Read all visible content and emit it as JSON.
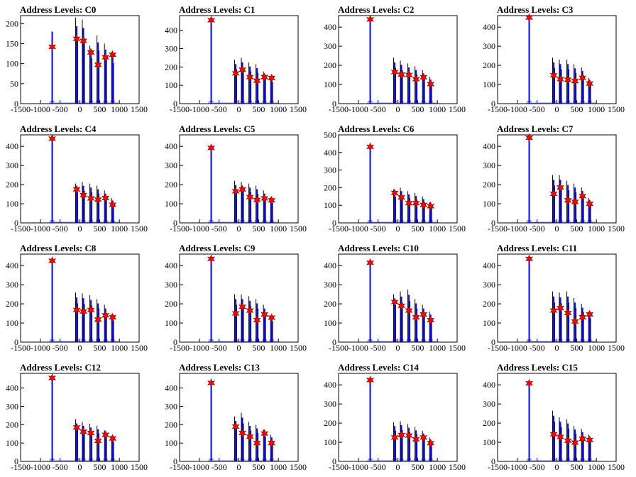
{
  "chart_data": {
    "type": "histogram",
    "x_tick_labels": [
      "-1500",
      "-1000",
      "-500",
      "0",
      "500",
      "1000",
      "1500"
    ],
    "xlim": [
      -1500,
      1500
    ],
    "marker": {
      "symbol": "star",
      "color": "#ff0000"
    },
    "line_color": "#0000ff",
    "charts": [
      {
        "title": "Address Levels: C0",
        "ylim": [
          0,
          220
        ],
        "y_ticks": [
          0,
          50,
          100,
          150,
          200
        ],
        "peaks": [
          {
            "x": -700,
            "y": 180
          },
          {
            "x": -80,
            "y": 215
          },
          {
            "x": 90,
            "y": 210
          },
          {
            "x": 280,
            "y": 145
          },
          {
            "x": 460,
            "y": 170
          },
          {
            "x": 650,
            "y": 150
          },
          {
            "x": 830,
            "y": 130
          }
        ],
        "markers": [
          {
            "x": -700,
            "y": 142
          },
          {
            "x": -80,
            "y": 162
          },
          {
            "x": 90,
            "y": 157
          },
          {
            "x": 280,
            "y": 128
          },
          {
            "x": 460,
            "y": 97
          },
          {
            "x": 650,
            "y": 116
          },
          {
            "x": 830,
            "y": 122
          }
        ]
      },
      {
        "title": "Address Levels: C1",
        "ylim": [
          0,
          480
        ],
        "y_ticks": [
          0,
          100,
          200,
          300,
          400
        ],
        "peaks": [
          {
            "x": -700,
            "y": 450
          },
          {
            "x": -80,
            "y": 240
          },
          {
            "x": 90,
            "y": 250
          },
          {
            "x": 280,
            "y": 225
          },
          {
            "x": 460,
            "y": 215
          },
          {
            "x": 650,
            "y": 175
          },
          {
            "x": 830,
            "y": 150
          }
        ],
        "markers": [
          {
            "x": -700,
            "y": 455
          },
          {
            "x": -80,
            "y": 165
          },
          {
            "x": 90,
            "y": 185
          },
          {
            "x": 280,
            "y": 145
          },
          {
            "x": 460,
            "y": 125
          },
          {
            "x": 650,
            "y": 145
          },
          {
            "x": 830,
            "y": 140
          }
        ]
      },
      {
        "title": "Address Levels: C2",
        "ylim": [
          0,
          460
        ],
        "y_ticks": [
          0,
          100,
          200,
          300,
          400
        ],
        "peaks": [
          {
            "x": -700,
            "y": 440
          },
          {
            "x": -80,
            "y": 240
          },
          {
            "x": 90,
            "y": 225
          },
          {
            "x": 280,
            "y": 210
          },
          {
            "x": 460,
            "y": 195
          },
          {
            "x": 650,
            "y": 175
          },
          {
            "x": 830,
            "y": 140
          }
        ],
        "markers": [
          {
            "x": -700,
            "y": 440
          },
          {
            "x": -80,
            "y": 165
          },
          {
            "x": 90,
            "y": 152
          },
          {
            "x": 280,
            "y": 150
          },
          {
            "x": 460,
            "y": 128
          },
          {
            "x": 650,
            "y": 138
          },
          {
            "x": 830,
            "y": 102
          }
        ]
      },
      {
        "title": "Address Levels: C3",
        "ylim": [
          0,
          460
        ],
        "y_ticks": [
          0,
          100,
          200,
          300,
          400
        ],
        "peaks": [
          {
            "x": -700,
            "y": 445
          },
          {
            "x": -80,
            "y": 240
          },
          {
            "x": 90,
            "y": 230
          },
          {
            "x": 280,
            "y": 230
          },
          {
            "x": 460,
            "y": 205
          },
          {
            "x": 650,
            "y": 190
          },
          {
            "x": 830,
            "y": 135
          }
        ],
        "markers": [
          {
            "x": -700,
            "y": 450
          },
          {
            "x": -80,
            "y": 148
          },
          {
            "x": 90,
            "y": 128
          },
          {
            "x": 280,
            "y": 125
          },
          {
            "x": 460,
            "y": 118
          },
          {
            "x": 650,
            "y": 135
          },
          {
            "x": 830,
            "y": 105
          }
        ]
      },
      {
        "title": "Address Levels: C4",
        "ylim": [
          0,
          460
        ],
        "y_ticks": [
          0,
          100,
          200,
          300,
          400
        ],
        "peaks": [
          {
            "x": -700,
            "y": 440
          },
          {
            "x": -80,
            "y": 205
          },
          {
            "x": 90,
            "y": 215
          },
          {
            "x": 280,
            "y": 205
          },
          {
            "x": 460,
            "y": 195
          },
          {
            "x": 650,
            "y": 170
          },
          {
            "x": 830,
            "y": 130
          }
        ],
        "markers": [
          {
            "x": -700,
            "y": 440
          },
          {
            "x": -80,
            "y": 175
          },
          {
            "x": 90,
            "y": 145
          },
          {
            "x": 280,
            "y": 128
          },
          {
            "x": 460,
            "y": 122
          },
          {
            "x": 650,
            "y": 130
          },
          {
            "x": 830,
            "y": 95
          }
        ]
      },
      {
        "title": "Address Levels: C5",
        "ylim": [
          0,
          460
        ],
        "y_ticks": [
          0,
          100,
          200,
          300,
          400
        ],
        "peaks": [
          {
            "x": -700,
            "y": 400
          },
          {
            "x": -80,
            "y": 220
          },
          {
            "x": 90,
            "y": 215
          },
          {
            "x": 280,
            "y": 205
          },
          {
            "x": 460,
            "y": 195
          },
          {
            "x": 650,
            "y": 170
          },
          {
            "x": 830,
            "y": 135
          }
        ],
        "markers": [
          {
            "x": -700,
            "y": 392
          },
          {
            "x": -80,
            "y": 165
          },
          {
            "x": 90,
            "y": 175
          },
          {
            "x": 280,
            "y": 135
          },
          {
            "x": 460,
            "y": 120
          },
          {
            "x": 650,
            "y": 128
          },
          {
            "x": 830,
            "y": 118
          }
        ]
      },
      {
        "title": "Address Levels: C6",
        "ylim": [
          0,
          500
        ],
        "y_ticks": [
          0,
          100,
          200,
          300,
          400,
          500
        ],
        "peaks": [
          {
            "x": -700,
            "y": 420
          },
          {
            "x": -80,
            "y": 190
          },
          {
            "x": 90,
            "y": 200
          },
          {
            "x": 280,
            "y": 180
          },
          {
            "x": 460,
            "y": 170
          },
          {
            "x": 650,
            "y": 150
          },
          {
            "x": 830,
            "y": 120
          }
        ],
        "markers": [
          {
            "x": -700,
            "y": 432
          },
          {
            "x": -80,
            "y": 170
          },
          {
            "x": 90,
            "y": 145
          },
          {
            "x": 280,
            "y": 112
          },
          {
            "x": 460,
            "y": 112
          },
          {
            "x": 650,
            "y": 102
          },
          {
            "x": 830,
            "y": 95
          }
        ]
      },
      {
        "title": "Address Levels: C7",
        "ylim": [
          0,
          460
        ],
        "y_ticks": [
          0,
          100,
          200,
          300,
          400
        ],
        "peaks": [
          {
            "x": -700,
            "y": 450
          },
          {
            "x": -80,
            "y": 250
          },
          {
            "x": 90,
            "y": 250
          },
          {
            "x": 280,
            "y": 220
          },
          {
            "x": 460,
            "y": 205
          },
          {
            "x": 650,
            "y": 185
          },
          {
            "x": 830,
            "y": 130
          }
        ],
        "markers": [
          {
            "x": -700,
            "y": 445
          },
          {
            "x": -80,
            "y": 152
          },
          {
            "x": 90,
            "y": 185
          },
          {
            "x": 280,
            "y": 118
          },
          {
            "x": 460,
            "y": 110
          },
          {
            "x": 650,
            "y": 140
          },
          {
            "x": 830,
            "y": 100
          }
        ]
      },
      {
        "title": "Address Levels: C8",
        "ylim": [
          0,
          460
        ],
        "y_ticks": [
          0,
          100,
          200,
          300,
          400
        ],
        "peaks": [
          {
            "x": -700,
            "y": 420
          },
          {
            "x": -80,
            "y": 260
          },
          {
            "x": 90,
            "y": 255
          },
          {
            "x": 280,
            "y": 245
          },
          {
            "x": 460,
            "y": 225
          },
          {
            "x": 650,
            "y": 195
          },
          {
            "x": 830,
            "y": 145
          }
        ],
        "markers": [
          {
            "x": -700,
            "y": 425
          },
          {
            "x": -80,
            "y": 168
          },
          {
            "x": 90,
            "y": 160
          },
          {
            "x": 280,
            "y": 168
          },
          {
            "x": 460,
            "y": 118
          },
          {
            "x": 650,
            "y": 140
          },
          {
            "x": 830,
            "y": 130
          }
        ]
      },
      {
        "title": "Address Levels: C9",
        "ylim": [
          0,
          460
        ],
        "y_ticks": [
          0,
          100,
          200,
          300,
          400
        ],
        "peaks": [
          {
            "x": -700,
            "y": 440
          },
          {
            "x": -80,
            "y": 250
          },
          {
            "x": 90,
            "y": 250
          },
          {
            "x": 280,
            "y": 240
          },
          {
            "x": 460,
            "y": 225
          },
          {
            "x": 650,
            "y": 195
          },
          {
            "x": 830,
            "y": 140
          }
        ],
        "markers": [
          {
            "x": -700,
            "y": 435
          },
          {
            "x": -80,
            "y": 150
          },
          {
            "x": 90,
            "y": 185
          },
          {
            "x": 280,
            "y": 165
          },
          {
            "x": 460,
            "y": 115
          },
          {
            "x": 650,
            "y": 145
          },
          {
            "x": 830,
            "y": 128
          }
        ]
      },
      {
        "title": "Address Levels: C10",
        "ylim": [
          0,
          460
        ],
        "y_ticks": [
          0,
          100,
          200,
          300,
          400
        ],
        "peaks": [
          {
            "x": -700,
            "y": 420
          },
          {
            "x": -80,
            "y": 250
          },
          {
            "x": 90,
            "y": 265
          },
          {
            "x": 280,
            "y": 275
          },
          {
            "x": 460,
            "y": 225
          },
          {
            "x": 650,
            "y": 195
          },
          {
            "x": 830,
            "y": 160
          }
        ],
        "markers": [
          {
            "x": -700,
            "y": 415
          },
          {
            "x": -80,
            "y": 210
          },
          {
            "x": 90,
            "y": 190
          },
          {
            "x": 280,
            "y": 165
          },
          {
            "x": 460,
            "y": 130
          },
          {
            "x": 650,
            "y": 145
          },
          {
            "x": 830,
            "y": 115
          }
        ]
      },
      {
        "title": "Address Levels: C11",
        "ylim": [
          0,
          460
        ],
        "y_ticks": [
          0,
          100,
          200,
          300,
          400
        ],
        "peaks": [
          {
            "x": -700,
            "y": 440
          },
          {
            "x": -80,
            "y": 265
          },
          {
            "x": 90,
            "y": 260
          },
          {
            "x": 280,
            "y": 265
          },
          {
            "x": 460,
            "y": 230
          },
          {
            "x": 650,
            "y": 200
          },
          {
            "x": 830,
            "y": 160
          }
        ],
        "markers": [
          {
            "x": -700,
            "y": 435
          },
          {
            "x": -80,
            "y": 165
          },
          {
            "x": 90,
            "y": 178
          },
          {
            "x": 280,
            "y": 152
          },
          {
            "x": 460,
            "y": 108
          },
          {
            "x": 650,
            "y": 130
          },
          {
            "x": 830,
            "y": 145
          }
        ]
      },
      {
        "title": "Address Levels: C12",
        "ylim": [
          0,
          480
        ],
        "y_ticks": [
          0,
          100,
          200,
          300,
          400
        ],
        "peaks": [
          {
            "x": -700,
            "y": 450
          },
          {
            "x": -80,
            "y": 230
          },
          {
            "x": 90,
            "y": 215
          },
          {
            "x": 280,
            "y": 205
          },
          {
            "x": 460,
            "y": 195
          },
          {
            "x": 650,
            "y": 170
          },
          {
            "x": 830,
            "y": 140
          }
        ],
        "markers": [
          {
            "x": -700,
            "y": 455
          },
          {
            "x": -80,
            "y": 185
          },
          {
            "x": 90,
            "y": 162
          },
          {
            "x": 280,
            "y": 155
          },
          {
            "x": 460,
            "y": 112
          },
          {
            "x": 650,
            "y": 145
          },
          {
            "x": 830,
            "y": 125
          }
        ]
      },
      {
        "title": "Address Levels: C13",
        "ylim": [
          0,
          480
        ],
        "y_ticks": [
          0,
          100,
          200,
          300,
          400
        ],
        "peaks": [
          {
            "x": -700,
            "y": 425
          },
          {
            "x": -80,
            "y": 245
          },
          {
            "x": 90,
            "y": 265
          },
          {
            "x": 280,
            "y": 215
          },
          {
            "x": 460,
            "y": 200
          },
          {
            "x": 650,
            "y": 175
          },
          {
            "x": 830,
            "y": 145
          }
        ],
        "markers": [
          {
            "x": -700,
            "y": 428
          },
          {
            "x": -80,
            "y": 190
          },
          {
            "x": 90,
            "y": 155
          },
          {
            "x": 280,
            "y": 135
          },
          {
            "x": 460,
            "y": 100
          },
          {
            "x": 650,
            "y": 152
          },
          {
            "x": 830,
            "y": 100
          }
        ]
      },
      {
        "title": "Address Levels: C14",
        "ylim": [
          0,
          460
        ],
        "y_ticks": [
          0,
          100,
          200,
          300,
          400
        ],
        "peaks": [
          {
            "x": -700,
            "y": 420
          },
          {
            "x": -80,
            "y": 205
          },
          {
            "x": 90,
            "y": 210
          },
          {
            "x": 280,
            "y": 195
          },
          {
            "x": 460,
            "y": 180
          },
          {
            "x": 650,
            "y": 160
          },
          {
            "x": 830,
            "y": 125
          }
        ],
        "markers": [
          {
            "x": -700,
            "y": 425
          },
          {
            "x": -80,
            "y": 125
          },
          {
            "x": 90,
            "y": 138
          },
          {
            "x": 280,
            "y": 135
          },
          {
            "x": 460,
            "y": 115
          },
          {
            "x": 650,
            "y": 125
          },
          {
            "x": 830,
            "y": 95
          }
        ]
      },
      {
        "title": "Address Levels: C15",
        "ylim": [
          0,
          460
        ],
        "y_ticks": [
          0,
          100,
          200,
          300,
          400
        ],
        "peaks": [
          {
            "x": -700,
            "y": 405
          },
          {
            "x": -80,
            "y": 265
          },
          {
            "x": 90,
            "y": 230
          },
          {
            "x": 280,
            "y": 220
          },
          {
            "x": 460,
            "y": 185
          },
          {
            "x": 650,
            "y": 170
          },
          {
            "x": 830,
            "y": 140
          }
        ],
        "markers": [
          {
            "x": -700,
            "y": 408
          },
          {
            "x": -80,
            "y": 142
          },
          {
            "x": 90,
            "y": 128
          },
          {
            "x": 280,
            "y": 108
          },
          {
            "x": 460,
            "y": 98
          },
          {
            "x": 650,
            "y": 118
          },
          {
            "x": 830,
            "y": 112
          }
        ]
      }
    ]
  }
}
